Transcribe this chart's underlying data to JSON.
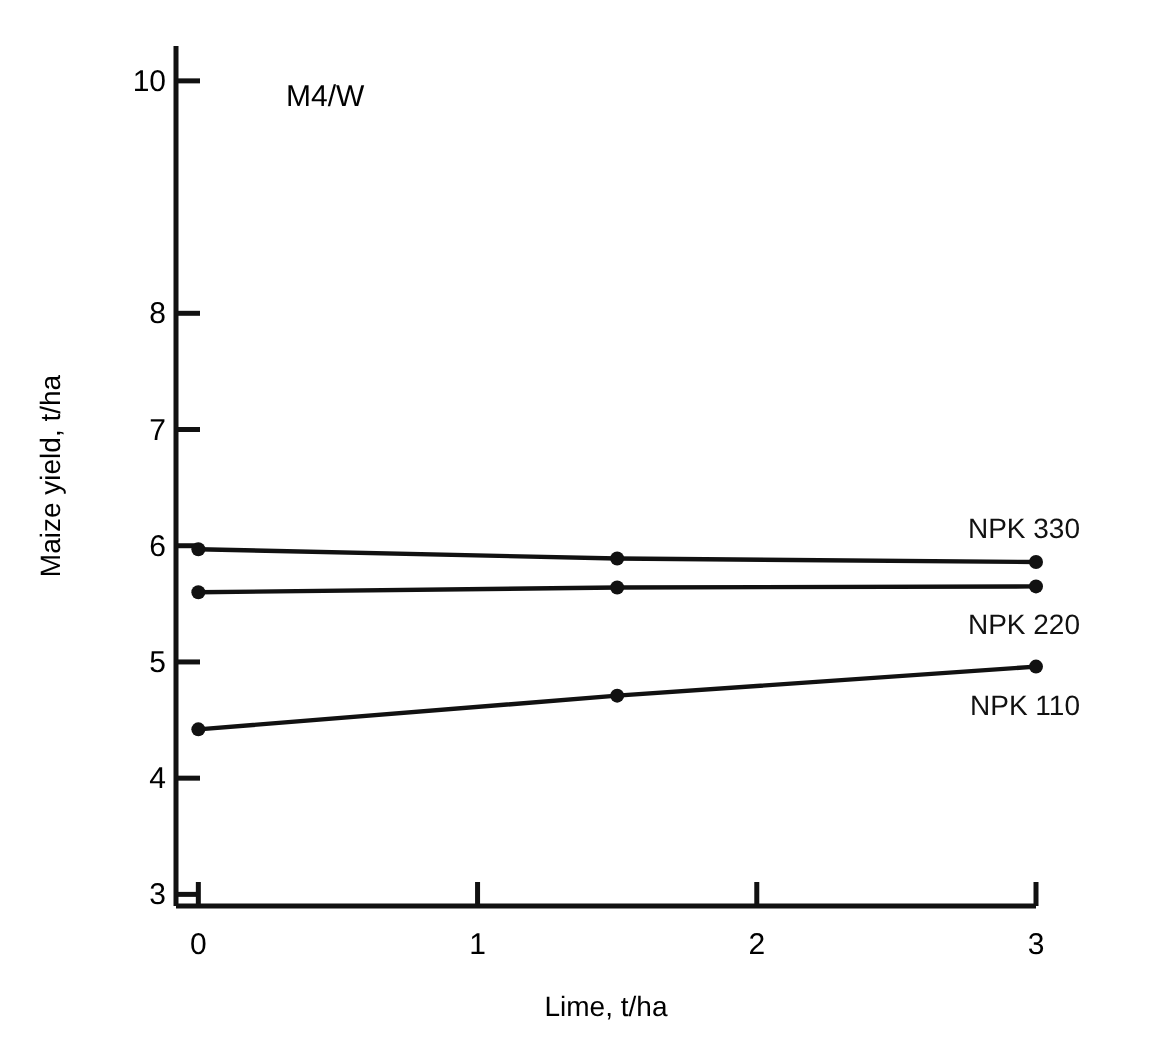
{
  "chart_data": {
    "type": "line",
    "xlabel": "Lime, t/ha",
    "ylabel": "Maize yield, t/ha",
    "annotations": [
      "M4/W"
    ],
    "x": [
      0,
      1.5,
      3
    ],
    "xlim": [
      -0.08,
      3
    ],
    "xticks": [
      0,
      1,
      2,
      3
    ],
    "ylim": [
      2.9,
      10.3
    ],
    "yticks": [
      3,
      4,
      5,
      6,
      7,
      8,
      10
    ],
    "marker": "circle",
    "line_style": "solid",
    "series": [
      {
        "name": "NPK 330",
        "color": "#111111",
        "values": [
          5.97,
          5.89,
          5.86
        ]
      },
      {
        "name": "NPK 220",
        "color": "#111111",
        "values": [
          5.6,
          5.64,
          5.65
        ]
      },
      {
        "name": "NPK 110",
        "color": "#111111",
        "values": [
          4.42,
          4.71,
          4.96
        ]
      }
    ]
  }
}
